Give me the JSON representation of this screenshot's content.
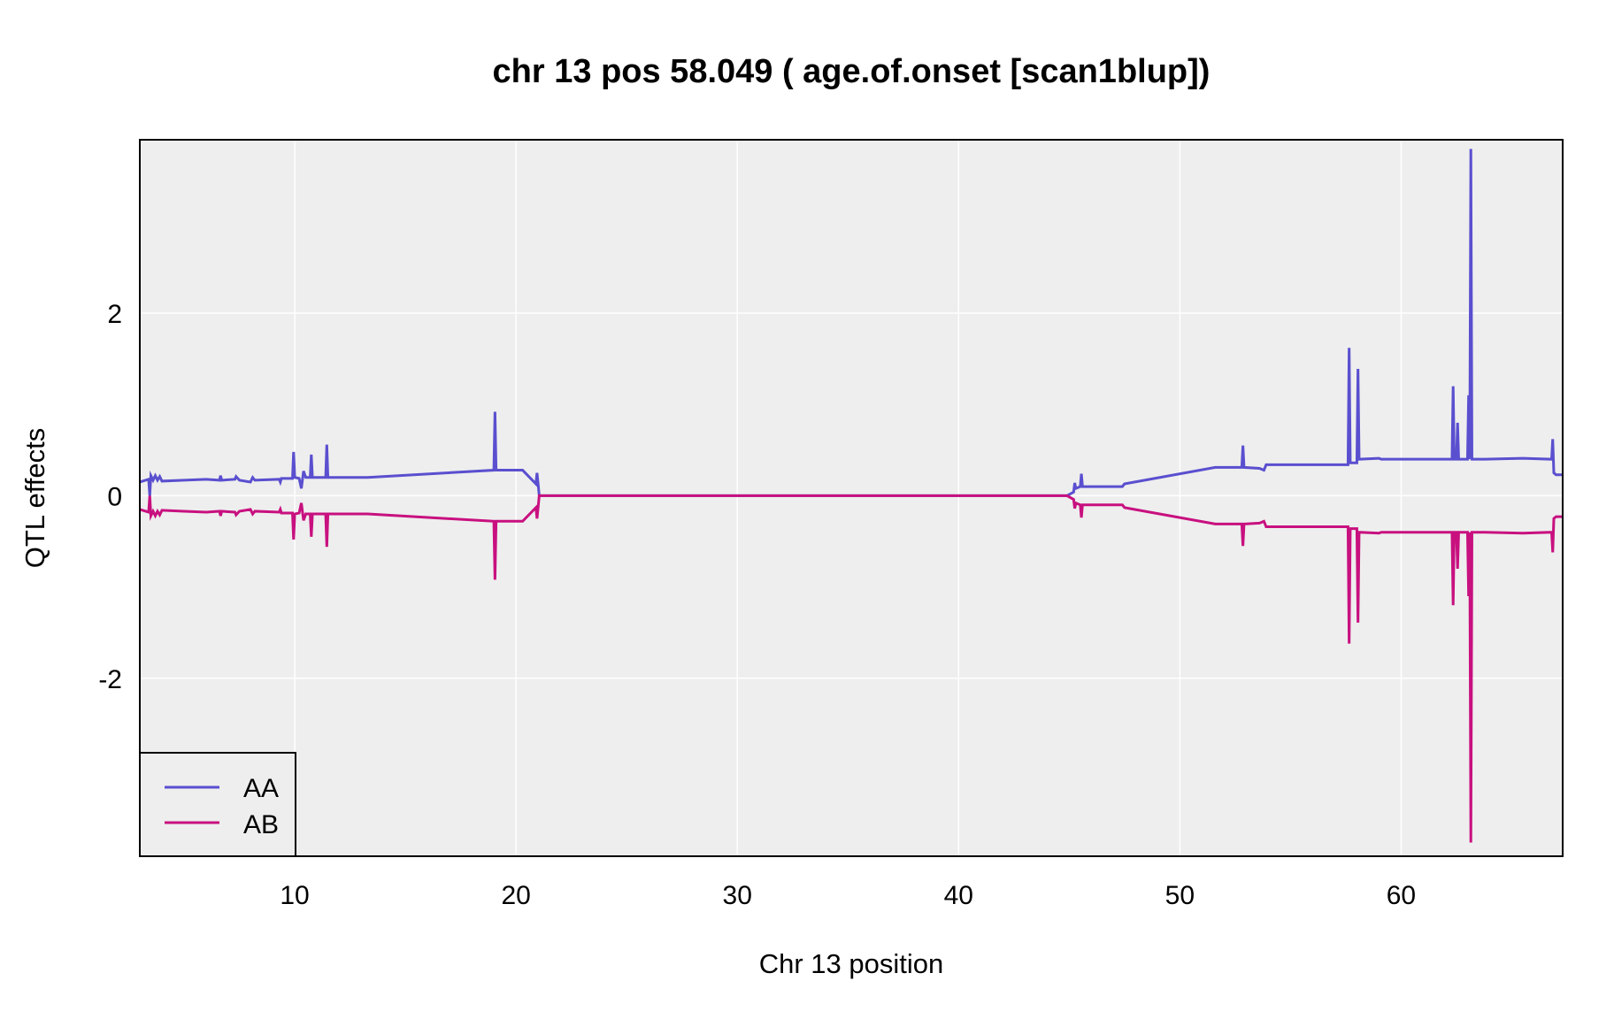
{
  "chart_data": {
    "type": "line",
    "title": "chr 13 pos 58.049 ( age.of.onset  [scan1blup])",
    "xlabel": "Chr 13 position",
    "ylabel": "QTL effects",
    "xlim": [
      3.0,
      67.3
    ],
    "ylim": [
      -3.95,
      3.9
    ],
    "xticks": [
      10,
      20,
      30,
      40,
      50,
      60
    ],
    "yticks": [
      -2,
      0,
      2
    ],
    "grid": true,
    "legend_position": "bottom-left",
    "colors": {
      "panel_bg": "#eeeeee",
      "grid": "#ffffff"
    },
    "series": [
      {
        "name": "AA",
        "color": "#5a4fcf",
        "points": [
          [
            3.0,
            0.15
          ],
          [
            3.4,
            0.18
          ],
          [
            3.45,
            0.0
          ],
          [
            3.5,
            0.22
          ],
          [
            3.6,
            0.17
          ],
          [
            3.7,
            0.22
          ],
          [
            3.8,
            0.17
          ],
          [
            3.9,
            0.21
          ],
          [
            4.0,
            0.16
          ],
          [
            5.0,
            0.17
          ],
          [
            6.0,
            0.18
          ],
          [
            6.6,
            0.17
          ],
          [
            6.65,
            0.22
          ],
          [
            6.7,
            0.17
          ],
          [
            7.3,
            0.18
          ],
          [
            7.35,
            0.21
          ],
          [
            7.5,
            0.17
          ],
          [
            8.0,
            0.15
          ],
          [
            8.1,
            0.2
          ],
          [
            8.2,
            0.17
          ],
          [
            9.3,
            0.18
          ],
          [
            9.35,
            0.15
          ],
          [
            9.4,
            0.19
          ],
          [
            9.9,
            0.19
          ],
          [
            9.95,
            0.48
          ],
          [
            10.0,
            0.2
          ],
          [
            10.2,
            0.19
          ],
          [
            10.3,
            0.08
          ],
          [
            10.4,
            0.27
          ],
          [
            10.5,
            0.2
          ],
          [
            10.7,
            0.2
          ],
          [
            10.75,
            0.45
          ],
          [
            10.8,
            0.2
          ],
          [
            11.4,
            0.2
          ],
          [
            11.45,
            0.56
          ],
          [
            11.5,
            0.2
          ],
          [
            13.3,
            0.2
          ],
          [
            19.0,
            0.28
          ],
          [
            19.05,
            0.92
          ],
          [
            19.1,
            0.28
          ],
          [
            20.3,
            0.28
          ],
          [
            20.9,
            0.13
          ],
          [
            20.95,
            0.25
          ],
          [
            21.0,
            0.13
          ],
          [
            21.05,
            0.0
          ],
          [
            44.9,
            0.0
          ],
          [
            45.2,
            0.04
          ],
          [
            45.25,
            0.14
          ],
          [
            45.3,
            0.08
          ],
          [
            45.5,
            0.1
          ],
          [
            45.55,
            0.24
          ],
          [
            45.6,
            0.1
          ],
          [
            47.4,
            0.1
          ],
          [
            47.5,
            0.13
          ],
          [
            51.6,
            0.31
          ],
          [
            52.8,
            0.31
          ],
          [
            52.85,
            0.55
          ],
          [
            52.9,
            0.31
          ],
          [
            53.6,
            0.3
          ],
          [
            53.8,
            0.28
          ],
          [
            53.9,
            0.34
          ],
          [
            57.6,
            0.34
          ],
          [
            57.65,
            1.62
          ],
          [
            57.7,
            0.36
          ],
          [
            58.0,
            0.36
          ],
          [
            58.05,
            1.39
          ],
          [
            58.1,
            0.4
          ],
          [
            59.0,
            0.41
          ],
          [
            59.1,
            0.4
          ],
          [
            62.3,
            0.4
          ],
          [
            62.35,
            1.2
          ],
          [
            62.4,
            0.4
          ],
          [
            62.5,
            0.4
          ],
          [
            62.55,
            0.8
          ],
          [
            62.6,
            0.4
          ],
          [
            63.0,
            0.4
          ],
          [
            63.05,
            1.1
          ],
          [
            63.1,
            0.4
          ],
          [
            63.15,
            3.8
          ],
          [
            63.2,
            0.4
          ],
          [
            63.8,
            0.4
          ],
          [
            65.5,
            0.41
          ],
          [
            66.8,
            0.4
          ],
          [
            66.85,
            0.62
          ],
          [
            66.9,
            0.25
          ],
          [
            67.0,
            0.23
          ],
          [
            67.3,
            0.23
          ]
        ]
      },
      {
        "name": "AB",
        "color": "#c8107f",
        "points": [
          [
            3.0,
            -0.15
          ],
          [
            3.4,
            -0.18
          ],
          [
            3.45,
            0.0
          ],
          [
            3.5,
            -0.22
          ],
          [
            3.6,
            -0.17
          ],
          [
            3.7,
            -0.22
          ],
          [
            3.8,
            -0.17
          ],
          [
            3.9,
            -0.21
          ],
          [
            4.0,
            -0.16
          ],
          [
            5.0,
            -0.17
          ],
          [
            6.0,
            -0.18
          ],
          [
            6.6,
            -0.17
          ],
          [
            6.65,
            -0.22
          ],
          [
            6.7,
            -0.17
          ],
          [
            7.3,
            -0.18
          ],
          [
            7.35,
            -0.21
          ],
          [
            7.5,
            -0.17
          ],
          [
            8.0,
            -0.15
          ],
          [
            8.1,
            -0.2
          ],
          [
            8.2,
            -0.17
          ],
          [
            9.3,
            -0.18
          ],
          [
            9.35,
            -0.15
          ],
          [
            9.4,
            -0.19
          ],
          [
            9.9,
            -0.19
          ],
          [
            9.95,
            -0.48
          ],
          [
            10.0,
            -0.2
          ],
          [
            10.2,
            -0.19
          ],
          [
            10.3,
            -0.08
          ],
          [
            10.4,
            -0.27
          ],
          [
            10.5,
            -0.2
          ],
          [
            10.7,
            -0.2
          ],
          [
            10.75,
            -0.45
          ],
          [
            10.8,
            -0.2
          ],
          [
            11.4,
            -0.2
          ],
          [
            11.45,
            -0.56
          ],
          [
            11.5,
            -0.2
          ],
          [
            13.3,
            -0.2
          ],
          [
            19.0,
            -0.28
          ],
          [
            19.05,
            -0.92
          ],
          [
            19.1,
            -0.28
          ],
          [
            20.3,
            -0.28
          ],
          [
            20.9,
            -0.13
          ],
          [
            20.95,
            -0.25
          ],
          [
            21.0,
            -0.13
          ],
          [
            21.05,
            0.0
          ],
          [
            44.9,
            0.0
          ],
          [
            45.2,
            -0.04
          ],
          [
            45.25,
            -0.14
          ],
          [
            45.3,
            -0.08
          ],
          [
            45.5,
            -0.1
          ],
          [
            45.55,
            -0.24
          ],
          [
            45.6,
            -0.1
          ],
          [
            47.4,
            -0.1
          ],
          [
            47.5,
            -0.13
          ],
          [
            51.6,
            -0.31
          ],
          [
            52.8,
            -0.31
          ],
          [
            52.85,
            -0.55
          ],
          [
            52.9,
            -0.31
          ],
          [
            53.6,
            -0.3
          ],
          [
            53.8,
            -0.28
          ],
          [
            53.9,
            -0.34
          ],
          [
            57.6,
            -0.34
          ],
          [
            57.65,
            -1.62
          ],
          [
            57.7,
            -0.36
          ],
          [
            58.0,
            -0.36
          ],
          [
            58.05,
            -1.39
          ],
          [
            58.1,
            -0.4
          ],
          [
            59.0,
            -0.41
          ],
          [
            59.1,
            -0.4
          ],
          [
            62.3,
            -0.4
          ],
          [
            62.35,
            -1.2
          ],
          [
            62.4,
            -0.4
          ],
          [
            62.5,
            -0.4
          ],
          [
            62.55,
            -0.8
          ],
          [
            62.6,
            -0.4
          ],
          [
            63.0,
            -0.4
          ],
          [
            63.05,
            -1.1
          ],
          [
            63.1,
            -0.4
          ],
          [
            63.15,
            -3.8
          ],
          [
            63.2,
            -0.4
          ],
          [
            63.8,
            -0.4
          ],
          [
            65.5,
            -0.41
          ],
          [
            66.8,
            -0.4
          ],
          [
            66.85,
            -0.62
          ],
          [
            66.9,
            -0.25
          ],
          [
            67.0,
            -0.23
          ],
          [
            67.3,
            -0.23
          ]
        ]
      }
    ]
  }
}
